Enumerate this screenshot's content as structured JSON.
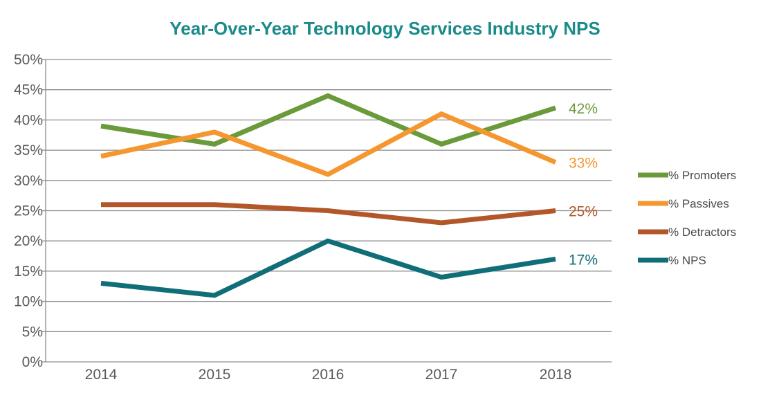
{
  "chart_data": {
    "type": "line",
    "title": "Year-Over-Year Technology Services Industry NPS",
    "xlabel": "",
    "ylabel": "",
    "categories": [
      "2014",
      "2015",
      "2016",
      "2017",
      "2018"
    ],
    "ylim": [
      0,
      50
    ],
    "yticks": [
      "0%",
      "5%",
      "10%",
      "15%",
      "20%",
      "25%",
      "30%",
      "35%",
      "40%",
      "45%",
      "50%"
    ],
    "grid": true,
    "legend_position": "right",
    "series": [
      {
        "name": "% Promoters",
        "values": [
          39,
          36,
          44,
          36,
          42
        ],
        "color": "#6a9a3a",
        "end_label": "42%"
      },
      {
        "name": "% Passives",
        "values": [
          34,
          38,
          31,
          41,
          33
        ],
        "color": "#f5962e",
        "end_label": "33%"
      },
      {
        "name": "% Detractors",
        "values": [
          26,
          26,
          25,
          23,
          25
        ],
        "color": "#b3572a",
        "end_label": "25%"
      },
      {
        "name": "% NPS",
        "values": [
          13,
          11,
          20,
          14,
          17
        ],
        "color": "#0f6e78",
        "end_label": "17%"
      }
    ]
  }
}
